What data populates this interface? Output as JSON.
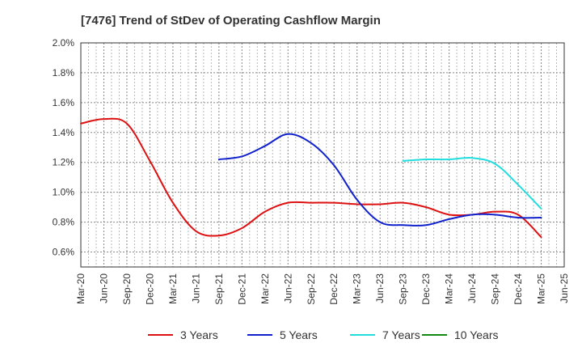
{
  "chart_data": {
    "type": "line",
    "title": "[7476]  Trend of StDev of Operating Cashflow Margin",
    "xlabel": "",
    "ylabel": "",
    "x_ticks": [
      "Mar-20",
      "Jun-20",
      "Sep-20",
      "Dec-20",
      "Mar-21",
      "Jun-21",
      "Sep-21",
      "Dec-21",
      "Mar-22",
      "Jun-22",
      "Sep-22",
      "Dec-22",
      "Mar-23",
      "Jun-23",
      "Sep-23",
      "Dec-23",
      "Mar-24",
      "Jun-24",
      "Sep-24",
      "Dec-24",
      "Mar-25",
      "Jun-25"
    ],
    "y_ticks": [
      "0.6%",
      "0.8%",
      "1.0%",
      "1.2%",
      "1.4%",
      "1.6%",
      "1.8%",
      "2.0%"
    ],
    "ylim": [
      0.5,
      2.0
    ],
    "y_unit": "%",
    "grid": true,
    "legend_position": "bottom",
    "series": [
      {
        "name": "3 Years",
        "color": "#dd1111",
        "x": [
          "Mar-20",
          "Jun-20",
          "Sep-20",
          "Dec-20",
          "Mar-21",
          "Jun-21",
          "Sep-21",
          "Dec-21",
          "Mar-22",
          "Jun-22",
          "Sep-22",
          "Dec-22",
          "Mar-23",
          "Jun-23",
          "Sep-23",
          "Dec-23",
          "Mar-24",
          "Jun-24",
          "Sep-24",
          "Dec-24",
          "Mar-25"
        ],
        "values": [
          1.46,
          1.49,
          1.46,
          1.21,
          0.93,
          0.74,
          0.71,
          0.76,
          0.87,
          0.93,
          0.93,
          0.93,
          0.92,
          0.92,
          0.93,
          0.9,
          0.85,
          0.85,
          0.87,
          0.85,
          0.7
        ]
      },
      {
        "name": "5 Years",
        "color": "#1122cc",
        "x": [
          "Sep-21",
          "Dec-21",
          "Mar-22",
          "Jun-22",
          "Sep-22",
          "Dec-22",
          "Mar-23",
          "Jun-23",
          "Sep-23",
          "Dec-23",
          "Mar-24",
          "Jun-24",
          "Sep-24",
          "Dec-24",
          "Mar-25"
        ],
        "values": [
          1.22,
          1.24,
          1.31,
          1.39,
          1.33,
          1.18,
          0.95,
          0.8,
          0.78,
          0.78,
          0.82,
          0.85,
          0.85,
          0.83,
          0.83
        ]
      },
      {
        "name": "7 Years",
        "color": "#22dddd",
        "x": [
          "Sep-23",
          "Dec-23",
          "Mar-24",
          "Jun-24",
          "Sep-24",
          "Dec-24",
          "Mar-25"
        ],
        "values": [
          1.21,
          1.22,
          1.22,
          1.23,
          1.19,
          1.05,
          0.89
        ]
      },
      {
        "name": "10 Years",
        "color": "#118811",
        "x": [],
        "values": []
      }
    ]
  }
}
